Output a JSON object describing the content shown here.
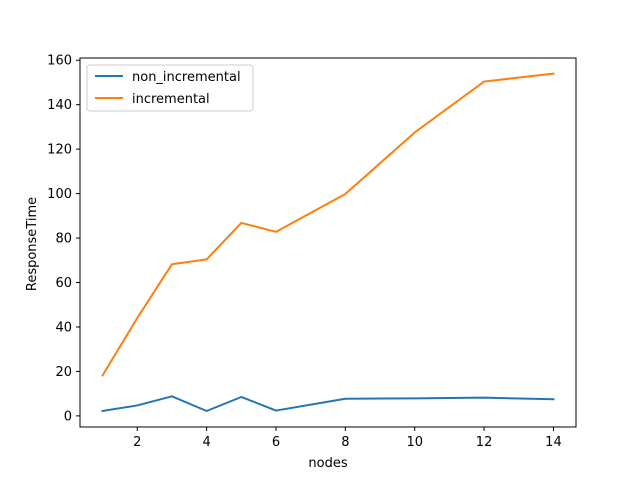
{
  "chart_data": {
    "type": "line",
    "xlabel": "nodes",
    "ylabel": "ResponseTime",
    "xlim": [
      0.35,
      14.65
    ],
    "ylim": [
      -5,
      161
    ],
    "xticks": [
      2,
      4,
      6,
      8,
      10,
      12,
      14
    ],
    "yticks": [
      0,
      20,
      40,
      60,
      80,
      100,
      120,
      140,
      160
    ],
    "legend_position": "top-left",
    "grid": false,
    "series": [
      {
        "name": "non_incremental",
        "color": "#1f77b4",
        "x": [
          1,
          2,
          3,
          4,
          5,
          6,
          8,
          10,
          12,
          14
        ],
        "y": [
          2.2,
          4.7,
          8.8,
          2.2,
          8.5,
          2.4,
          7.7,
          7.9,
          8.2,
          7.5
        ]
      },
      {
        "name": "incremental",
        "color": "#ff7f0e",
        "x": [
          1,
          2,
          3,
          4,
          5,
          6,
          8,
          10,
          12,
          14
        ],
        "y": [
          18.2,
          44.0,
          68.2,
          70.4,
          86.8,
          82.8,
          99.8,
          127.5,
          150.4,
          154.0
        ]
      }
    ]
  }
}
